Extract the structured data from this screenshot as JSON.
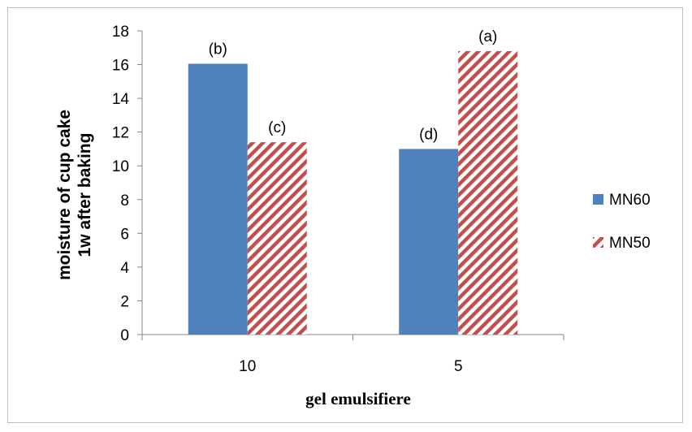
{
  "chart_data": {
    "type": "bar",
    "categories": [
      "10",
      "5"
    ],
    "series": [
      {
        "name": "MN60",
        "values": [
          16.05,
          11.0
        ],
        "labels": [
          "(b)",
          "(d)"
        ],
        "color": "#4f81bd",
        "pattern": "solid"
      },
      {
        "name": "MN50",
        "values": [
          11.4,
          16.8
        ],
        "labels": [
          "(c)",
          "(a)"
        ],
        "color": "#c0504d",
        "pattern": "diagonal-stripes"
      }
    ],
    "xlabel": "gel emulsifiere",
    "ylabel_lines": [
      "moisture of cup cake",
      "1w after baking"
    ],
    "ylim": [
      0,
      18
    ],
    "yticks": [
      0,
      2,
      4,
      6,
      8,
      10,
      12,
      14,
      16,
      18
    ],
    "grid": false,
    "legend_position": "right"
  }
}
